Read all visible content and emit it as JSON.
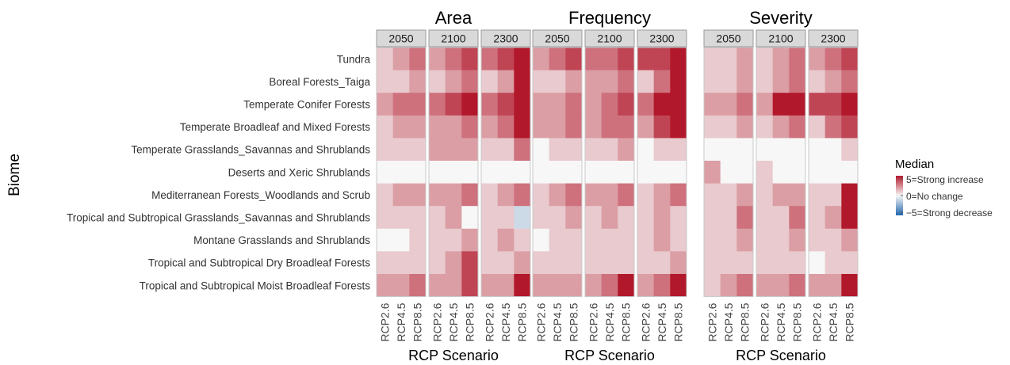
{
  "chart_data": {
    "type": "heatmap",
    "title": "",
    "ylabel": "Biome",
    "xlabel": "RCP Scenario",
    "metrics": [
      "Area",
      "Frequency",
      "Severity"
    ],
    "years": [
      "2050",
      "2100",
      "2300"
    ],
    "scenarios": [
      "RCP2.6",
      "RCP4.5",
      "RCP8.5"
    ],
    "biomes": [
      "Tundra",
      "Boreal Forests_Taiga",
      "Temperate Conifer Forests",
      "Temperate Broadleaf and Mixed Forests",
      "Temperate Grasslands_Savannas and Shrublands",
      "Deserts and Xeric Shrublands",
      "Mediterranean Forests_Woodlands and Scrub",
      "Tropical and Subtropical Grasslands_Savannas and Shrublands",
      "Montane Grasslands and Shrublands",
      "Tropical and Subtropical Dry Broadleaf Forests",
      "Tropical and Subtropical Moist Broadleaf Forests"
    ],
    "legend": {
      "title": "Median",
      "labels": [
        "5=Strong increase",
        "0=No change",
        "−5=Strong decrease"
      ],
      "range": [
        -5,
        5
      ],
      "colors": {
        "high": "#b2182b",
        "mid": "#f7f7f7",
        "low": "#2166ac"
      }
    },
    "values": [
      [
        [
          1,
          2,
          3
        ],
        [
          2,
          3,
          4
        ],
        [
          3,
          4,
          5
        ],
        [
          2,
          3,
          4
        ],
        [
          3,
          3,
          4
        ],
        [
          4,
          4,
          5
        ],
        [
          1,
          1,
          2
        ],
        [
          1,
          2,
          3
        ],
        [
          2,
          3,
          4
        ]
      ],
      [
        [
          1,
          1,
          2
        ],
        [
          1,
          2,
          3
        ],
        [
          1,
          2,
          5
        ],
        [
          1,
          1,
          2
        ],
        [
          2,
          2,
          3
        ],
        [
          1,
          3,
          5
        ],
        [
          1,
          1,
          2
        ],
        [
          1,
          2,
          3
        ],
        [
          1,
          2,
          3
        ]
      ],
      [
        [
          2,
          3,
          3
        ],
        [
          3,
          4,
          5
        ],
        [
          3,
          4,
          5
        ],
        [
          2,
          2,
          3
        ],
        [
          2,
          3,
          4
        ],
        [
          3,
          5,
          5
        ],
        [
          2,
          2,
          3
        ],
        [
          2,
          5,
          5
        ],
        [
          4,
          4,
          5
        ]
      ],
      [
        [
          1,
          2,
          2
        ],
        [
          2,
          2,
          3
        ],
        [
          2,
          3,
          5
        ],
        [
          2,
          2,
          3
        ],
        [
          2,
          3,
          3
        ],
        [
          2,
          4,
          5
        ],
        [
          1,
          1,
          2
        ],
        [
          1,
          2,
          3
        ],
        [
          1,
          3,
          4
        ]
      ],
      [
        [
          1,
          1,
          1
        ],
        [
          2,
          2,
          2
        ],
        [
          1,
          1,
          3
        ],
        [
          0,
          1,
          1
        ],
        [
          1,
          1,
          2
        ],
        [
          0,
          1,
          1
        ],
        [
          0,
          0,
          0
        ],
        [
          0,
          0,
          0
        ],
        [
          0,
          0,
          1
        ]
      ],
      [
        [
          0,
          0,
          0
        ],
        [
          0,
          0,
          0
        ],
        [
          0,
          0,
          0
        ],
        [
          0,
          0,
          0
        ],
        [
          0,
          0,
          0
        ],
        [
          0,
          0,
          0
        ],
        [
          2,
          0,
          0
        ],
        [
          1,
          0,
          0
        ],
        [
          0,
          0,
          0
        ]
      ],
      [
        [
          1,
          2,
          2
        ],
        [
          2,
          2,
          3
        ],
        [
          1,
          2,
          3
        ],
        [
          1,
          2,
          3
        ],
        [
          2,
          2,
          3
        ],
        [
          1,
          2,
          3
        ],
        [
          1,
          1,
          2
        ],
        [
          1,
          2,
          2
        ],
        [
          1,
          1,
          5
        ]
      ],
      [
        [
          1,
          1,
          1
        ],
        [
          1,
          2,
          0
        ],
        [
          1,
          1,
          -1
        ],
        [
          1,
          1,
          2
        ],
        [
          1,
          2,
          1
        ],
        [
          1,
          2,
          1
        ],
        [
          1,
          1,
          3
        ],
        [
          1,
          1,
          3
        ],
        [
          1,
          2,
          5
        ]
      ],
      [
        [
          0,
          0,
          1
        ],
        [
          1,
          1,
          2
        ],
        [
          1,
          2,
          1
        ],
        [
          0,
          1,
          1
        ],
        [
          1,
          1,
          1
        ],
        [
          1,
          2,
          1
        ],
        [
          1,
          1,
          2
        ],
        [
          1,
          1,
          2
        ],
        [
          1,
          1,
          2
        ]
      ],
      [
        [
          1,
          1,
          1
        ],
        [
          1,
          2,
          4
        ],
        [
          1,
          1,
          2
        ],
        [
          1,
          1,
          1
        ],
        [
          1,
          1,
          1
        ],
        [
          1,
          1,
          2
        ],
        [
          1,
          1,
          1
        ],
        [
          1,
          1,
          1
        ],
        [
          0,
          1,
          1
        ]
      ],
      [
        [
          2,
          2,
          3
        ],
        [
          2,
          2,
          4
        ],
        [
          2,
          2,
          5
        ],
        [
          2,
          2,
          2
        ],
        [
          2,
          3,
          5
        ],
        [
          2,
          3,
          5
        ],
        [
          1,
          2,
          3
        ],
        [
          2,
          2,
          3
        ],
        [
          2,
          2,
          5
        ]
      ]
    ]
  }
}
